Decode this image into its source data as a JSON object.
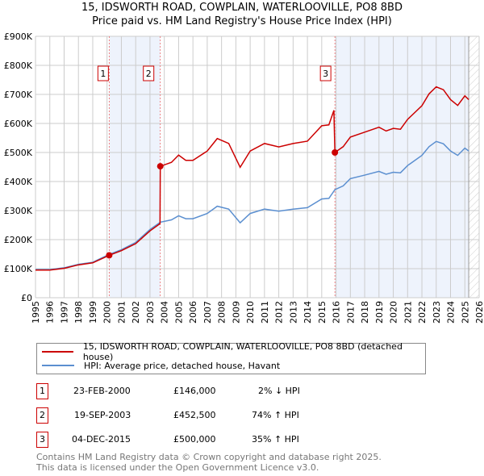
{
  "title_line1": "15, IDSWORTH ROAD, COWPLAIN, WATERLOOVILLE, PO8 8BD",
  "title_line2": "Price paid vs. HM Land Registry's House Price Index (HPI)",
  "chart_data": {
    "type": "line",
    "title": "15, IDSWORTH ROAD, COWPLAIN, WATERLOOVILLE, PO8 8BD - Price paid vs. HM Land Registry's House Price Index (HPI)",
    "xlim": [
      1995,
      2026
    ],
    "ylim": [
      0,
      900000
    ],
    "x_ticks": [
      "1995",
      "1996",
      "1997",
      "1998",
      "1999",
      "2000",
      "2001",
      "2002",
      "2003",
      "2004",
      "2005",
      "2006",
      "2007",
      "2008",
      "2009",
      "2010",
      "2011",
      "2012",
      "2013",
      "2014",
      "2015",
      "2016",
      "2017",
      "2018",
      "2019",
      "2020",
      "2021",
      "2022",
      "2023",
      "2024",
      "2025",
      "2026"
    ],
    "y_ticks": [
      {
        "v": 0,
        "label": "£0"
      },
      {
        "v": 100000,
        "label": "£100K"
      },
      {
        "v": 200000,
        "label": "£200K"
      },
      {
        "v": 300000,
        "label": "£300K"
      },
      {
        "v": 400000,
        "label": "£400K"
      },
      {
        "v": 500000,
        "label": "£500K"
      },
      {
        "v": 600000,
        "label": "£600K"
      },
      {
        "v": 700000,
        "label": "£700K"
      },
      {
        "v": 800000,
        "label": "£800K"
      },
      {
        "v": 900000,
        "label": "£900K"
      }
    ],
    "grid": true,
    "shaded_ranges": [
      [
        2000.15,
        2003.72
      ],
      [
        2015.92,
        2025.27
      ]
    ],
    "future_hatch_from": 2025.27,
    "series": [
      {
        "name": "15, IDSWORTH ROAD, COWPLAIN, WATERLOOVILLE, PO8 8BD (detached house)",
        "color": "#cc0000",
        "points": [
          [
            1995,
            95000
          ],
          [
            1996,
            95000
          ],
          [
            1997,
            101000
          ],
          [
            1998,
            113000
          ],
          [
            1999,
            120000
          ],
          [
            2000.15,
            146000
          ],
          [
            2001,
            162000
          ],
          [
            2002,
            186000
          ],
          [
            2003,
            230000
          ],
          [
            2003.7,
            255000
          ],
          [
            2003.72,
            452500
          ],
          [
            2004.5,
            466000
          ],
          [
            2005,
            491000
          ],
          [
            2005.5,
            473000
          ],
          [
            2006,
            473000
          ],
          [
            2007,
            505000
          ],
          [
            2007.7,
            548000
          ],
          [
            2008.5,
            531000
          ],
          [
            2009.3,
            449000
          ],
          [
            2010,
            505000
          ],
          [
            2011,
            531000
          ],
          [
            2012,
            519000
          ],
          [
            2013,
            531000
          ],
          [
            2014,
            539000
          ],
          [
            2015,
            592000
          ],
          [
            2015.5,
            595000
          ],
          [
            2015.85,
            645000
          ],
          [
            2015.92,
            500000
          ],
          [
            2016.5,
            520000
          ],
          [
            2017,
            553000
          ],
          [
            2018,
            570000
          ],
          [
            2019,
            587000
          ],
          [
            2019.5,
            574000
          ],
          [
            2020,
            583000
          ],
          [
            2020.5,
            580000
          ],
          [
            2021,
            614000
          ],
          [
            2022,
            661000
          ],
          [
            2022.5,
            702000
          ],
          [
            2023,
            726000
          ],
          [
            2023.5,
            716000
          ],
          [
            2024,
            682000
          ],
          [
            2024.5,
            662000
          ],
          [
            2025,
            695000
          ],
          [
            2025.27,
            682000
          ]
        ]
      },
      {
        "name": "HPI: Average price, detached house, Havant",
        "color": "#5b8fd0",
        "points": [
          [
            1995,
            97000
          ],
          [
            1996,
            97000
          ],
          [
            1997,
            103000
          ],
          [
            1998,
            115000
          ],
          [
            1999,
            122000
          ],
          [
            2000.15,
            149000
          ],
          [
            2001,
            165000
          ],
          [
            2002,
            190000
          ],
          [
            2003,
            235000
          ],
          [
            2003.72,
            260000
          ],
          [
            2004.5,
            268000
          ],
          [
            2005,
            282000
          ],
          [
            2005.5,
            272000
          ],
          [
            2006,
            272000
          ],
          [
            2007,
            290000
          ],
          [
            2007.7,
            315000
          ],
          [
            2008.5,
            305000
          ],
          [
            2009.3,
            258000
          ],
          [
            2010,
            290000
          ],
          [
            2011,
            305000
          ],
          [
            2012,
            298000
          ],
          [
            2013,
            305000
          ],
          [
            2014,
            310000
          ],
          [
            2015,
            340000
          ],
          [
            2015.5,
            342000
          ],
          [
            2015.92,
            372000
          ],
          [
            2016.5,
            385000
          ],
          [
            2017,
            410000
          ],
          [
            2018,
            422000
          ],
          [
            2019,
            435000
          ],
          [
            2019.5,
            425000
          ],
          [
            2020,
            432000
          ],
          [
            2020.5,
            430000
          ],
          [
            2021,
            455000
          ],
          [
            2022,
            490000
          ],
          [
            2022.5,
            520000
          ],
          [
            2023,
            538000
          ],
          [
            2023.5,
            530000
          ],
          [
            2024,
            505000
          ],
          [
            2024.5,
            490000
          ],
          [
            2025,
            515000
          ],
          [
            2025.27,
            505000
          ]
        ]
      }
    ],
    "sales": [
      {
        "label": "1",
        "x": 2000.15,
        "y": 146000,
        "date": "23-FEB-2000",
        "price": "£146,000",
        "hpi": "2% ↓ HPI"
      },
      {
        "label": "2",
        "x": 2003.72,
        "y": 452500,
        "date": "19-SEP-2003",
        "price": "£452,500",
        "hpi": "74% ↑ HPI"
      },
      {
        "label": "3",
        "x": 2015.92,
        "y": 500000,
        "date": "04-DEC-2015",
        "price": "£500,000",
        "hpi": "35% ↑ HPI"
      }
    ]
  },
  "legend": {
    "red": "15, IDSWORTH ROAD, COWPLAIN, WATERLOOVILLE, PO8 8BD (detached house)",
    "blue": "HPI: Average price, detached house, Havant"
  },
  "footer": {
    "line1": "Contains HM Land Registry data © Crown copyright and database right 2025.",
    "line2": "This data is licensed under the Open Government Licence v3.0."
  }
}
